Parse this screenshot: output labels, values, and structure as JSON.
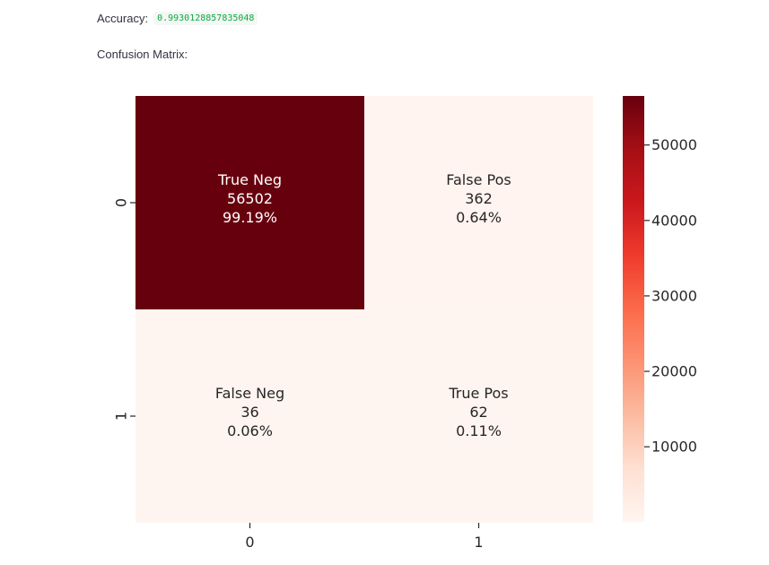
{
  "accuracy": {
    "label": "Accuracy:",
    "value": "0.9930128857835048"
  },
  "confusion_label": "Confusion Matrix:",
  "chart_data": {
    "type": "heatmap",
    "colormap": "Reds",
    "rows": [
      "0",
      "1"
    ],
    "cols": [
      "0",
      "1"
    ],
    "values": [
      [
        56502,
        362
      ],
      [
        36,
        62
      ]
    ],
    "cell_labels": [
      [
        [
          "True Neg",
          "56502",
          "99.19%"
        ],
        [
          "False Pos",
          "362",
          "0.64%"
        ]
      ],
      [
        [
          "False Neg",
          "36",
          "0.06%"
        ],
        [
          "True Pos",
          "62",
          "0.11%"
        ]
      ]
    ],
    "colorbar": {
      "range": [
        36,
        56502
      ],
      "ticks": [
        10000,
        20000,
        30000,
        40000,
        50000
      ],
      "tick_labels": [
        "10000",
        "20000",
        "30000",
        "40000",
        "50000"
      ]
    },
    "xlabel": "",
    "ylabel": "",
    "title": ""
  }
}
